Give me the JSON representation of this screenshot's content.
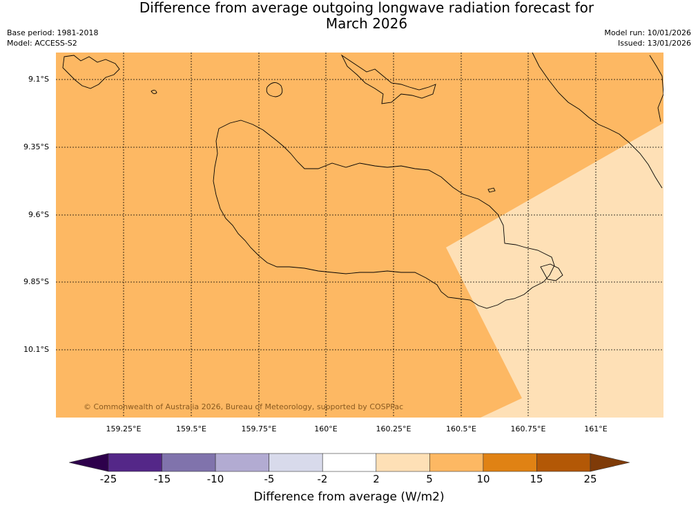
{
  "title_line1": "Difference from average outgoing longwave radiation forecast for",
  "title_line2": "March 2026",
  "base_period": "Base period: 1981-2018",
  "model": "Model: ACCESS-S2",
  "model_run": "Model run: 10/01/2026",
  "issued": "Issued: 13/01/2026",
  "copyright": "© Commonwealth of Australia 2026, Bureau of Meteorology, supported by COSPPac",
  "lat_labels": [
    "9.1°S",
    "9.35°S",
    "9.6°S",
    "9.85°S",
    "10.1°S"
  ],
  "lon_labels": [
    "159.25°E",
    "159.5°E",
    "159.75°E",
    "160°E",
    "160.25°E",
    "160.5°E",
    "160.75°E",
    "161°E"
  ],
  "colorbar": {
    "label": "Difference from average (W/m2)",
    "ticks": [
      "-25",
      "-15",
      "-10",
      "-5",
      "-2",
      "2",
      "5",
      "10",
      "15",
      "25"
    ],
    "colors": [
      "#2d004b",
      "#542788",
      "#8073ac",
      "#b2abd2",
      "#d8daeb",
      "#ffffff",
      "#fee0b6",
      "#fdb863",
      "#e08214",
      "#b35806",
      "#7f3b08"
    ]
  },
  "map_colors": {
    "main_fill": "#fdb863",
    "light_fill": "#fee0b6"
  }
}
